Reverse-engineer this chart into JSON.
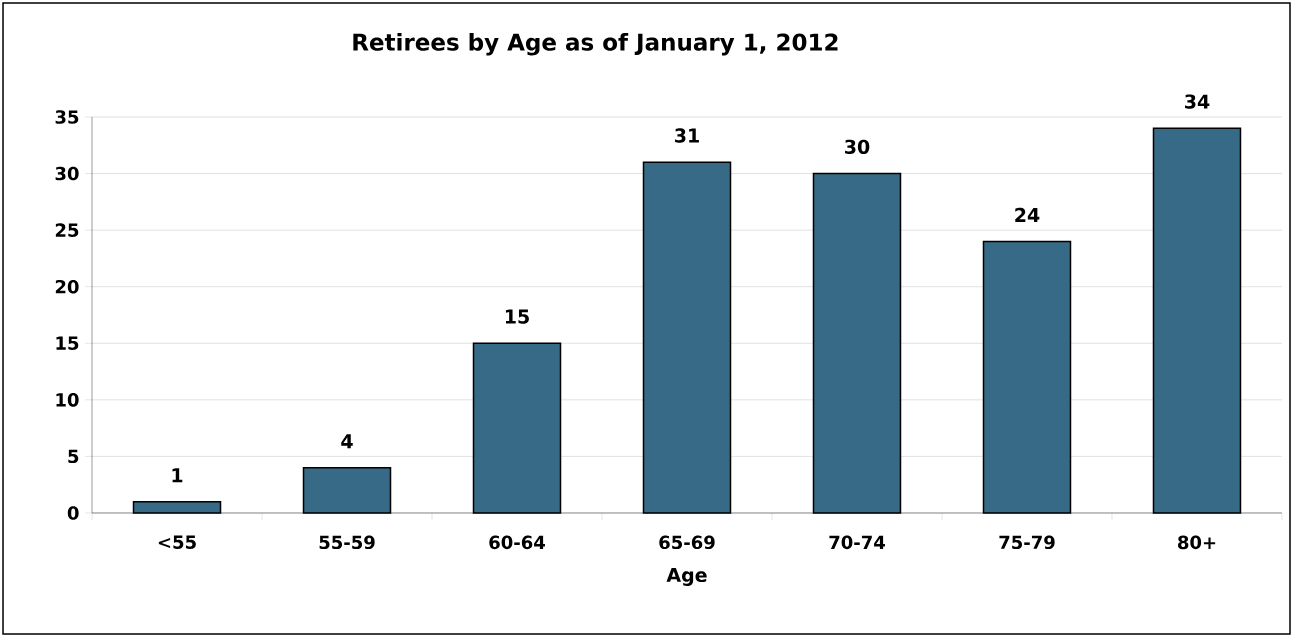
{
  "chart_data": {
    "type": "bar",
    "title": "Retirees by Age as of January 1, 2012",
    "xlabel": "Age",
    "categories": [
      "<55",
      "55-59",
      "60-64",
      "65-69",
      "70-74",
      "75-79",
      "80+"
    ],
    "values": [
      1,
      4,
      15,
      31,
      30,
      24,
      34
    ],
    "color": "#376a87",
    "ylim": [
      0,
      35
    ],
    "yticks": [
      0,
      5,
      10,
      15,
      20,
      25,
      30,
      35
    ],
    "grid": "y",
    "data_labels": true
  }
}
